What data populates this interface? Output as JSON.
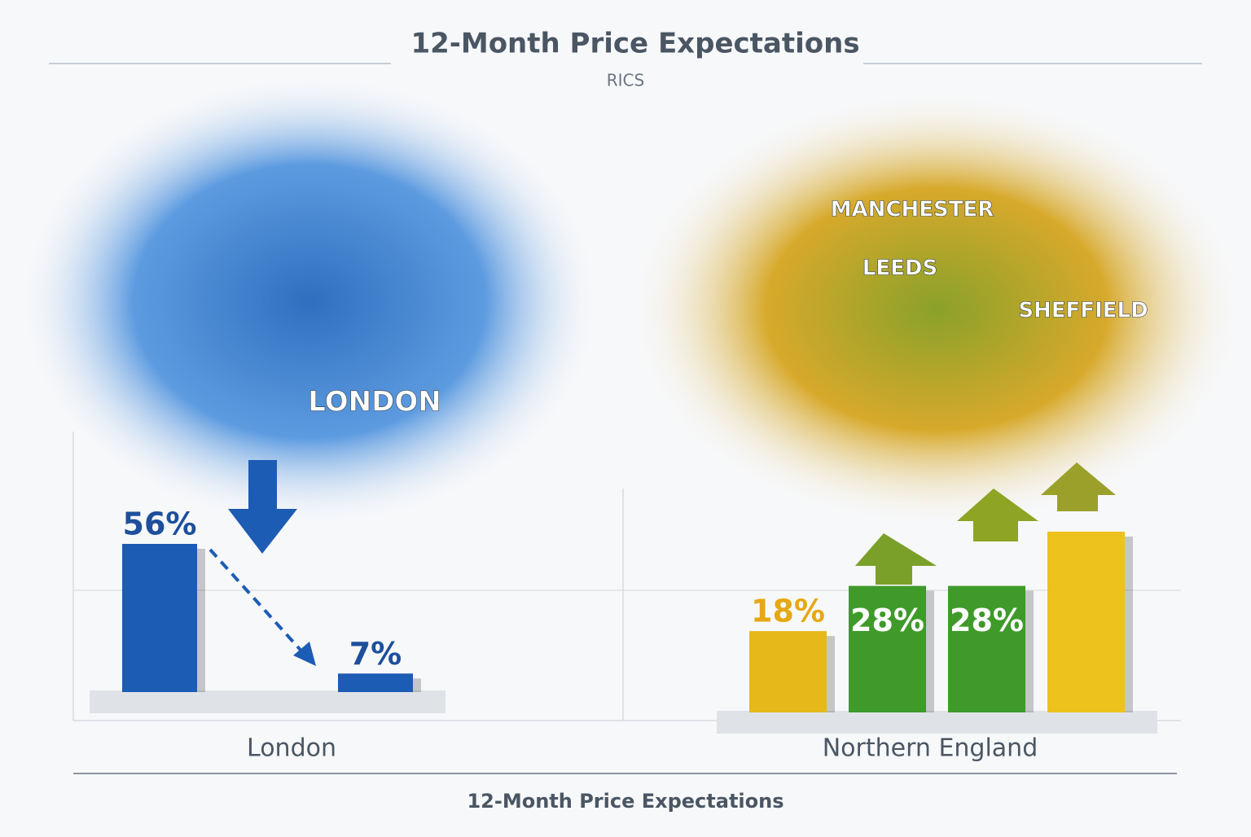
{
  "title": "12-Month Price Expectations",
  "subtitle": "RICS",
  "footer": "12-Month Price Expectations",
  "chart_data": [
    {
      "type": "bar",
      "x_label": "London",
      "values": [
        56,
        7
      ],
      "value_labels": [
        "56%",
        "7%"
      ],
      "colors": [
        "#1d5cb5",
        "#1d5cb5"
      ],
      "annotations": [
        "LONDON"
      ]
    },
    {
      "type": "bar",
      "x_label": "Northern England",
      "values": [
        18,
        28,
        28,
        40
      ],
      "value_labels": [
        "18%",
        "28%",
        "28%",
        null
      ],
      "colors": [
        "#e6b81a",
        "#3f9a2a",
        "#3f9a2a",
        "#edc21c"
      ],
      "annotations": [
        "MANCHESTER",
        "LEEDS",
        "SHEFFIELD"
      ]
    }
  ]
}
